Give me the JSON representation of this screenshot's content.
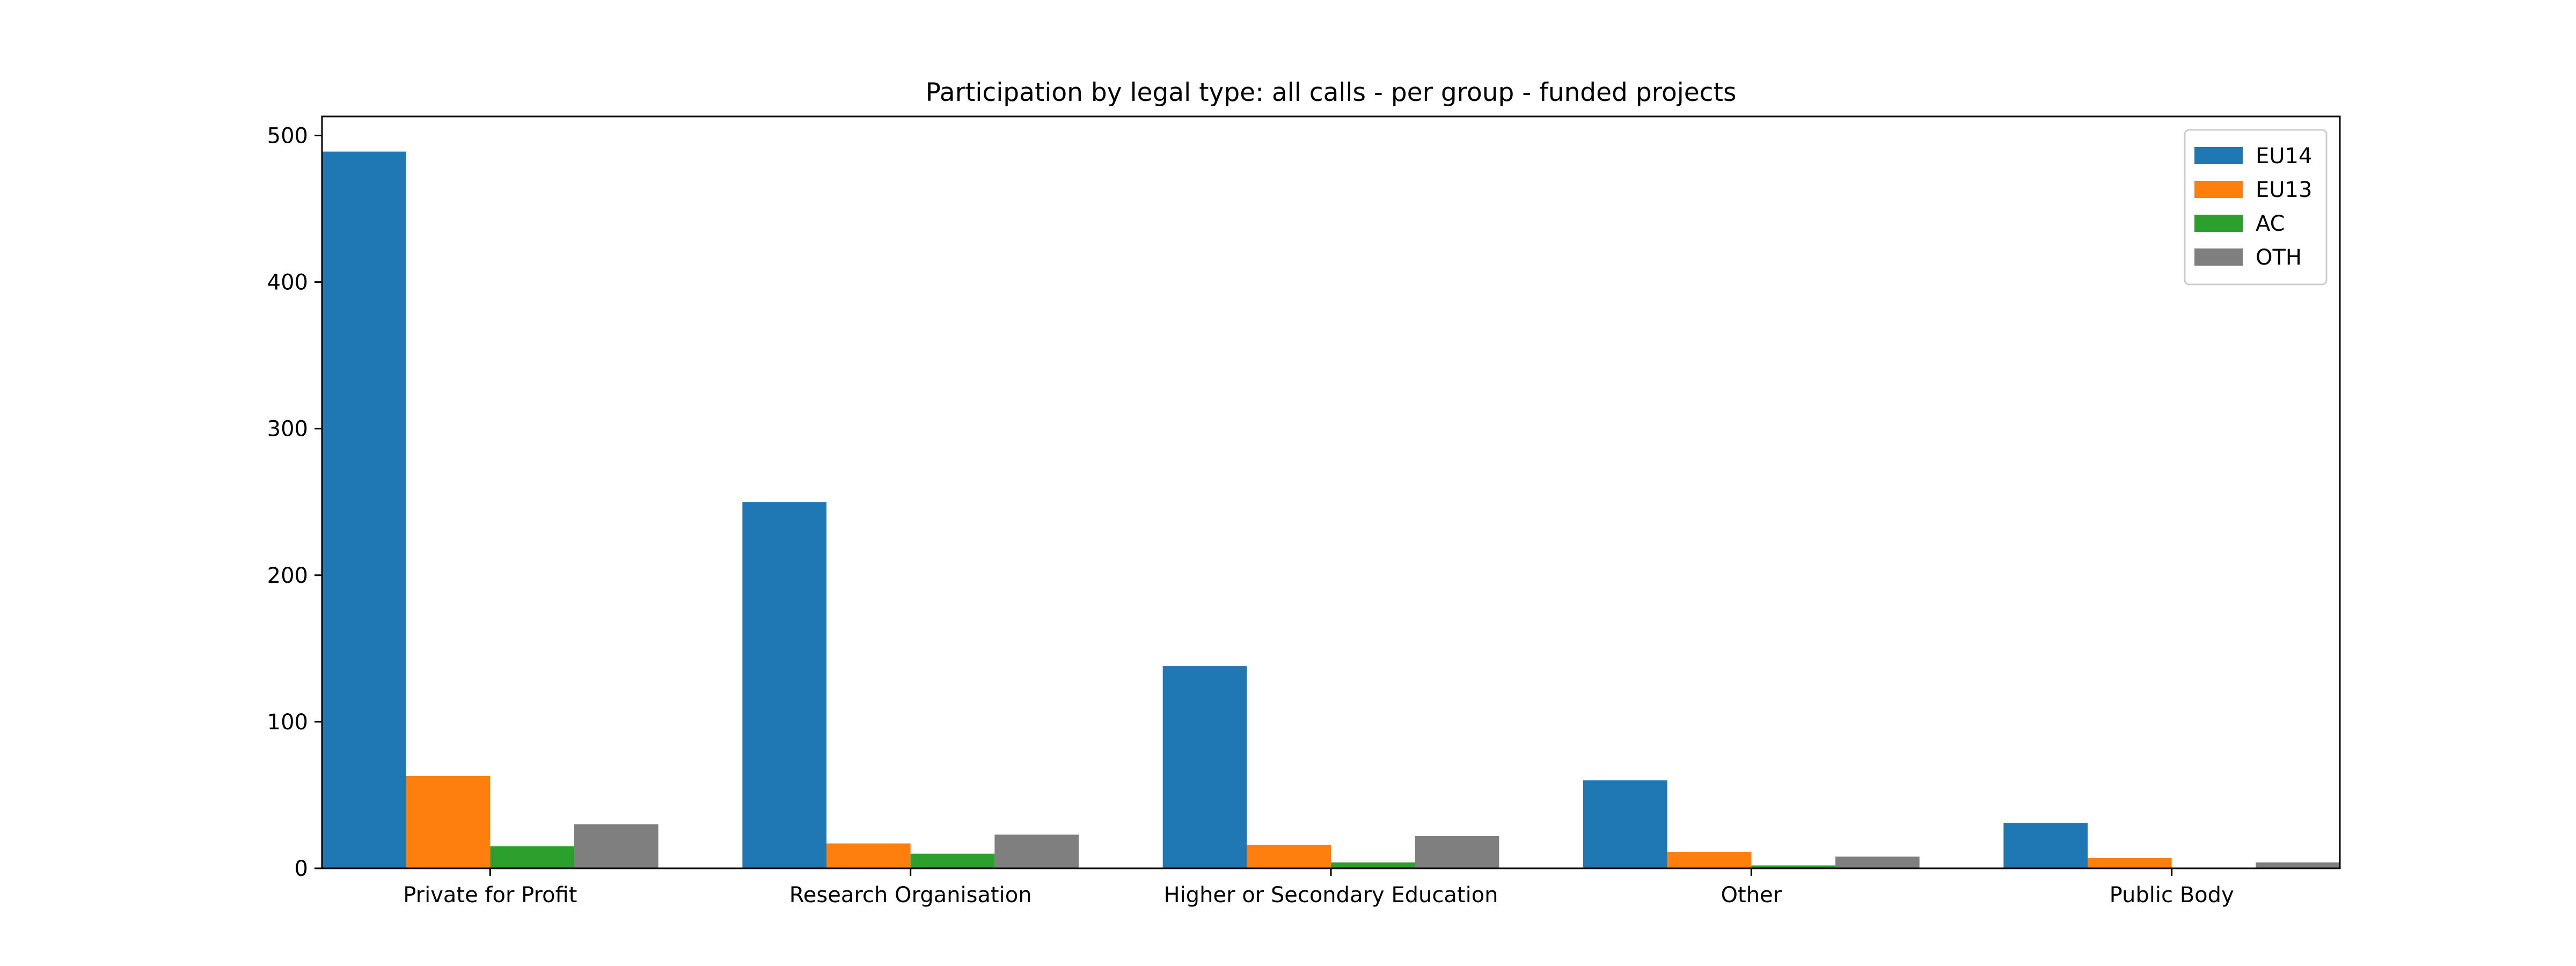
{
  "chart_data": {
    "type": "bar",
    "title": "Participation by legal type: all calls - per group - funded projects",
    "xlabel": "",
    "ylabel": "",
    "categories": [
      "Private for Profit",
      "Research Organisation",
      "Higher or Secondary Education",
      "Other",
      "Public Body"
    ],
    "series": [
      {
        "name": "EU14",
        "color": "#1f77b4",
        "values": [
          489,
          250,
          138,
          60,
          31
        ]
      },
      {
        "name": "EU13",
        "color": "#ff7f0e",
        "values": [
          63,
          17,
          16,
          11,
          7
        ]
      },
      {
        "name": "AC",
        "color": "#2ca02c",
        "values": [
          15,
          10,
          4,
          2,
          0
        ]
      },
      {
        "name": "OTH",
        "color": "#7f7f7f",
        "values": [
          30,
          23,
          22,
          8,
          4
        ]
      }
    ],
    "ylim": [
      0,
      513
    ],
    "yticks": [
      0,
      100,
      200,
      300,
      400,
      500
    ],
    "grid": false,
    "legend_position": "top-right"
  }
}
